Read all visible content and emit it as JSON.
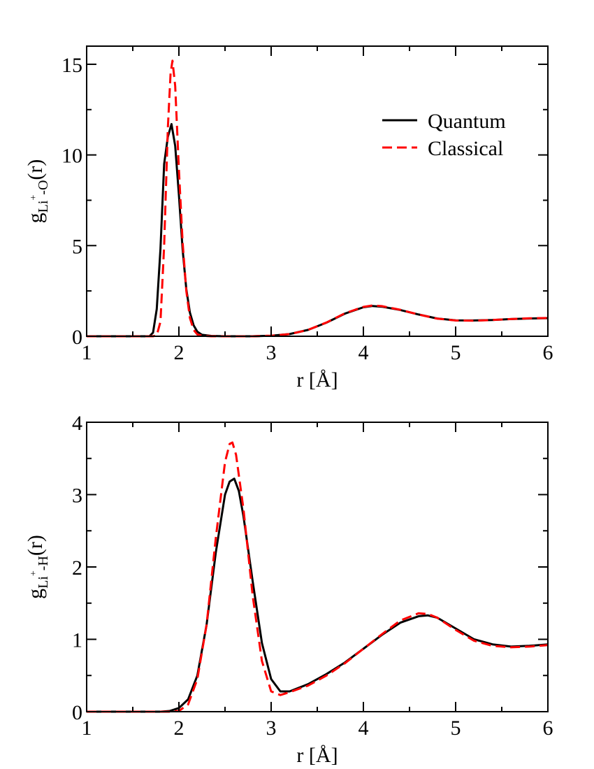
{
  "chart_data": [
    {
      "type": "line",
      "title": "",
      "xlabel": "r [Å]",
      "ylabel": {
        "base": "g",
        "sub_pre": "Li",
        "sup": "+",
        "sub_post": "-O",
        "suffix": "(r)"
      },
      "xlim": [
        1,
        6
      ],
      "ylim": [
        0,
        16
      ],
      "xticks": [
        1,
        2,
        3,
        4,
        5,
        6
      ],
      "xtick_labels": [
        "1",
        "2",
        "3",
        "4",
        "5",
        "6"
      ],
      "yticks": [
        0,
        5,
        10,
        15
      ],
      "ytick_labels": [
        "0",
        "5",
        "10",
        "15"
      ],
      "legend": {
        "placement": "top-right",
        "entries": [
          "Quantum",
          "Classical"
        ]
      },
      "series": [
        {
          "name": "Quantum",
          "color": "#000000",
          "style": "solid",
          "x": [
            1.0,
            1.5,
            1.68,
            1.72,
            1.76,
            1.8,
            1.84,
            1.88,
            1.92,
            1.96,
            2.0,
            2.04,
            2.08,
            2.12,
            2.16,
            2.2,
            2.25,
            2.35,
            2.5,
            2.8,
            3.0,
            3.2,
            3.4,
            3.6,
            3.8,
            4.0,
            4.1,
            4.2,
            4.4,
            4.6,
            4.8,
            5.0,
            5.2,
            5.4,
            5.6,
            5.8,
            6.0
          ],
          "y": [
            0,
            0,
            0.0,
            0.2,
            1.5,
            4.8,
            9.5,
            11.0,
            11.7,
            10.5,
            7.8,
            4.8,
            2.6,
            1.3,
            0.6,
            0.25,
            0.08,
            0.02,
            0.0,
            0.0,
            0.03,
            0.12,
            0.35,
            0.75,
            1.25,
            1.6,
            1.67,
            1.63,
            1.45,
            1.2,
            0.98,
            0.88,
            0.87,
            0.9,
            0.95,
            0.98,
            1.0
          ]
        },
        {
          "name": "Classical",
          "color": "#ff0000",
          "style": "dashed",
          "x": [
            1.0,
            1.5,
            1.72,
            1.76,
            1.8,
            1.84,
            1.88,
            1.91,
            1.93,
            1.96,
            2.0,
            2.04,
            2.08,
            2.12,
            2.16,
            2.2,
            2.25,
            2.35,
            2.5,
            2.8,
            3.0,
            3.2,
            3.4,
            3.6,
            3.8,
            4.0,
            4.1,
            4.2,
            4.4,
            4.6,
            4.8,
            5.0,
            5.2,
            5.4,
            5.6,
            5.8,
            6.0
          ],
          "y": [
            0,
            0,
            0.0,
            0.05,
            0.8,
            5.0,
            11.5,
            14.5,
            15.2,
            13.8,
            9.2,
            5.2,
            2.5,
            1.0,
            0.35,
            0.1,
            0.03,
            0.0,
            0.0,
            0.0,
            0.03,
            0.12,
            0.35,
            0.76,
            1.27,
            1.62,
            1.7,
            1.66,
            1.46,
            1.2,
            0.97,
            0.87,
            0.86,
            0.9,
            0.95,
            0.99,
            1.01
          ]
        }
      ]
    },
    {
      "type": "line",
      "title": "",
      "xlabel": "r [Å]",
      "ylabel": {
        "base": "g",
        "sub_pre": "Li",
        "sup": "+",
        "sub_post": "-H",
        "suffix": "(r)"
      },
      "xlim": [
        1,
        6
      ],
      "ylim": [
        0,
        4
      ],
      "xticks": [
        1,
        2,
        3,
        4,
        5,
        6
      ],
      "xtick_labels": [
        "1",
        "2",
        "3",
        "4",
        "5",
        "6"
      ],
      "yticks": [
        0,
        1,
        2,
        3,
        4
      ],
      "ytick_labels": [
        "0",
        "1",
        "2",
        "3",
        "4"
      ],
      "series": [
        {
          "name": "Quantum",
          "color": "#000000",
          "style": "solid",
          "x": [
            1.0,
            1.8,
            1.9,
            2.0,
            2.1,
            2.2,
            2.3,
            2.4,
            2.5,
            2.55,
            2.6,
            2.65,
            2.7,
            2.8,
            2.9,
            3.0,
            3.1,
            3.2,
            3.4,
            3.6,
            3.8,
            4.0,
            4.2,
            4.4,
            4.6,
            4.7,
            4.8,
            5.0,
            5.2,
            5.4,
            5.6,
            5.8,
            6.0
          ],
          "y": [
            0,
            0,
            0.01,
            0.05,
            0.17,
            0.5,
            1.2,
            2.2,
            3.0,
            3.18,
            3.22,
            3.05,
            2.7,
            1.8,
            0.95,
            0.45,
            0.28,
            0.28,
            0.38,
            0.52,
            0.68,
            0.87,
            1.06,
            1.23,
            1.32,
            1.33,
            1.3,
            1.15,
            1.0,
            0.93,
            0.9,
            0.91,
            0.93
          ]
        },
        {
          "name": "Classical",
          "color": "#ff0000",
          "style": "dashed",
          "x": [
            1.0,
            1.9,
            2.0,
            2.1,
            2.2,
            2.3,
            2.4,
            2.5,
            2.55,
            2.58,
            2.62,
            2.7,
            2.8,
            2.9,
            3.0,
            3.1,
            3.2,
            3.4,
            3.6,
            3.8,
            4.0,
            4.2,
            4.4,
            4.6,
            4.7,
            4.8,
            5.0,
            5.2,
            5.4,
            5.6,
            5.8,
            6.0
          ],
          "y": [
            0,
            0,
            0.01,
            0.1,
            0.45,
            1.2,
            2.4,
            3.45,
            3.7,
            3.72,
            3.55,
            2.8,
            1.6,
            0.7,
            0.28,
            0.23,
            0.27,
            0.36,
            0.5,
            0.67,
            0.87,
            1.07,
            1.26,
            1.36,
            1.35,
            1.3,
            1.13,
            0.98,
            0.91,
            0.89,
            0.9,
            0.92
          ]
        }
      ]
    }
  ]
}
